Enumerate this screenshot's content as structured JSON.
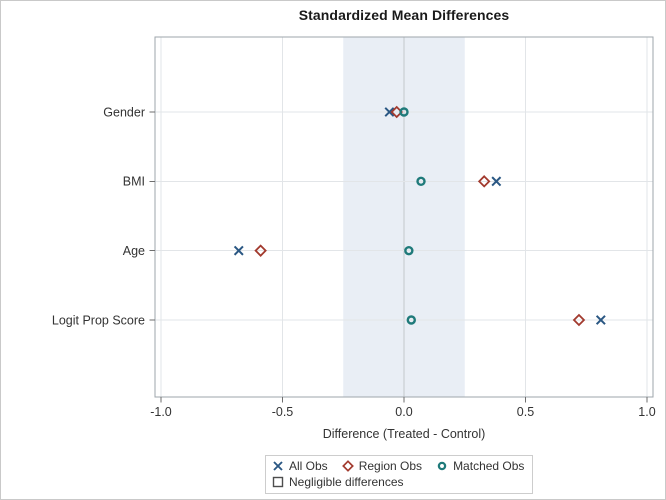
{
  "chart_data": {
    "type": "scatter",
    "title": "Standardized Mean Differences",
    "xlabel": "Difference (Treated - Control)",
    "ylabel": "",
    "categories": [
      "Gender",
      "BMI",
      "Age",
      "Logit Prop Score"
    ],
    "x_ticks": [
      "-1.0",
      "-0.5",
      "0.0",
      "0.5",
      "1.0"
    ],
    "x_tick_values": [
      -1.0,
      -0.5,
      0.0,
      0.5,
      1.0
    ],
    "xlim": [
      -1.02,
      1.02
    ],
    "grid": true,
    "legend_position": "bottom",
    "band": {
      "label": "Negligible differences",
      "from": -0.25,
      "to": 0.25,
      "fill_color": "#e9eef5",
      "swatch_outline_color": "#4d4d4d"
    },
    "series": [
      {
        "name": "All Obs",
        "marker": "x",
        "color": "#2a5783",
        "values": [
          -0.06,
          0.38,
          -0.68,
          0.81
        ]
      },
      {
        "name": "Region Obs",
        "marker": "diamond",
        "color": "#a23a2e",
        "values": [
          -0.03,
          0.33,
          -0.59,
          0.72
        ]
      },
      {
        "name": "Matched Obs",
        "marker": "circle",
        "color": "#1f7a7a",
        "values": [
          0.0,
          0.07,
          0.02,
          0.03
        ]
      }
    ]
  }
}
